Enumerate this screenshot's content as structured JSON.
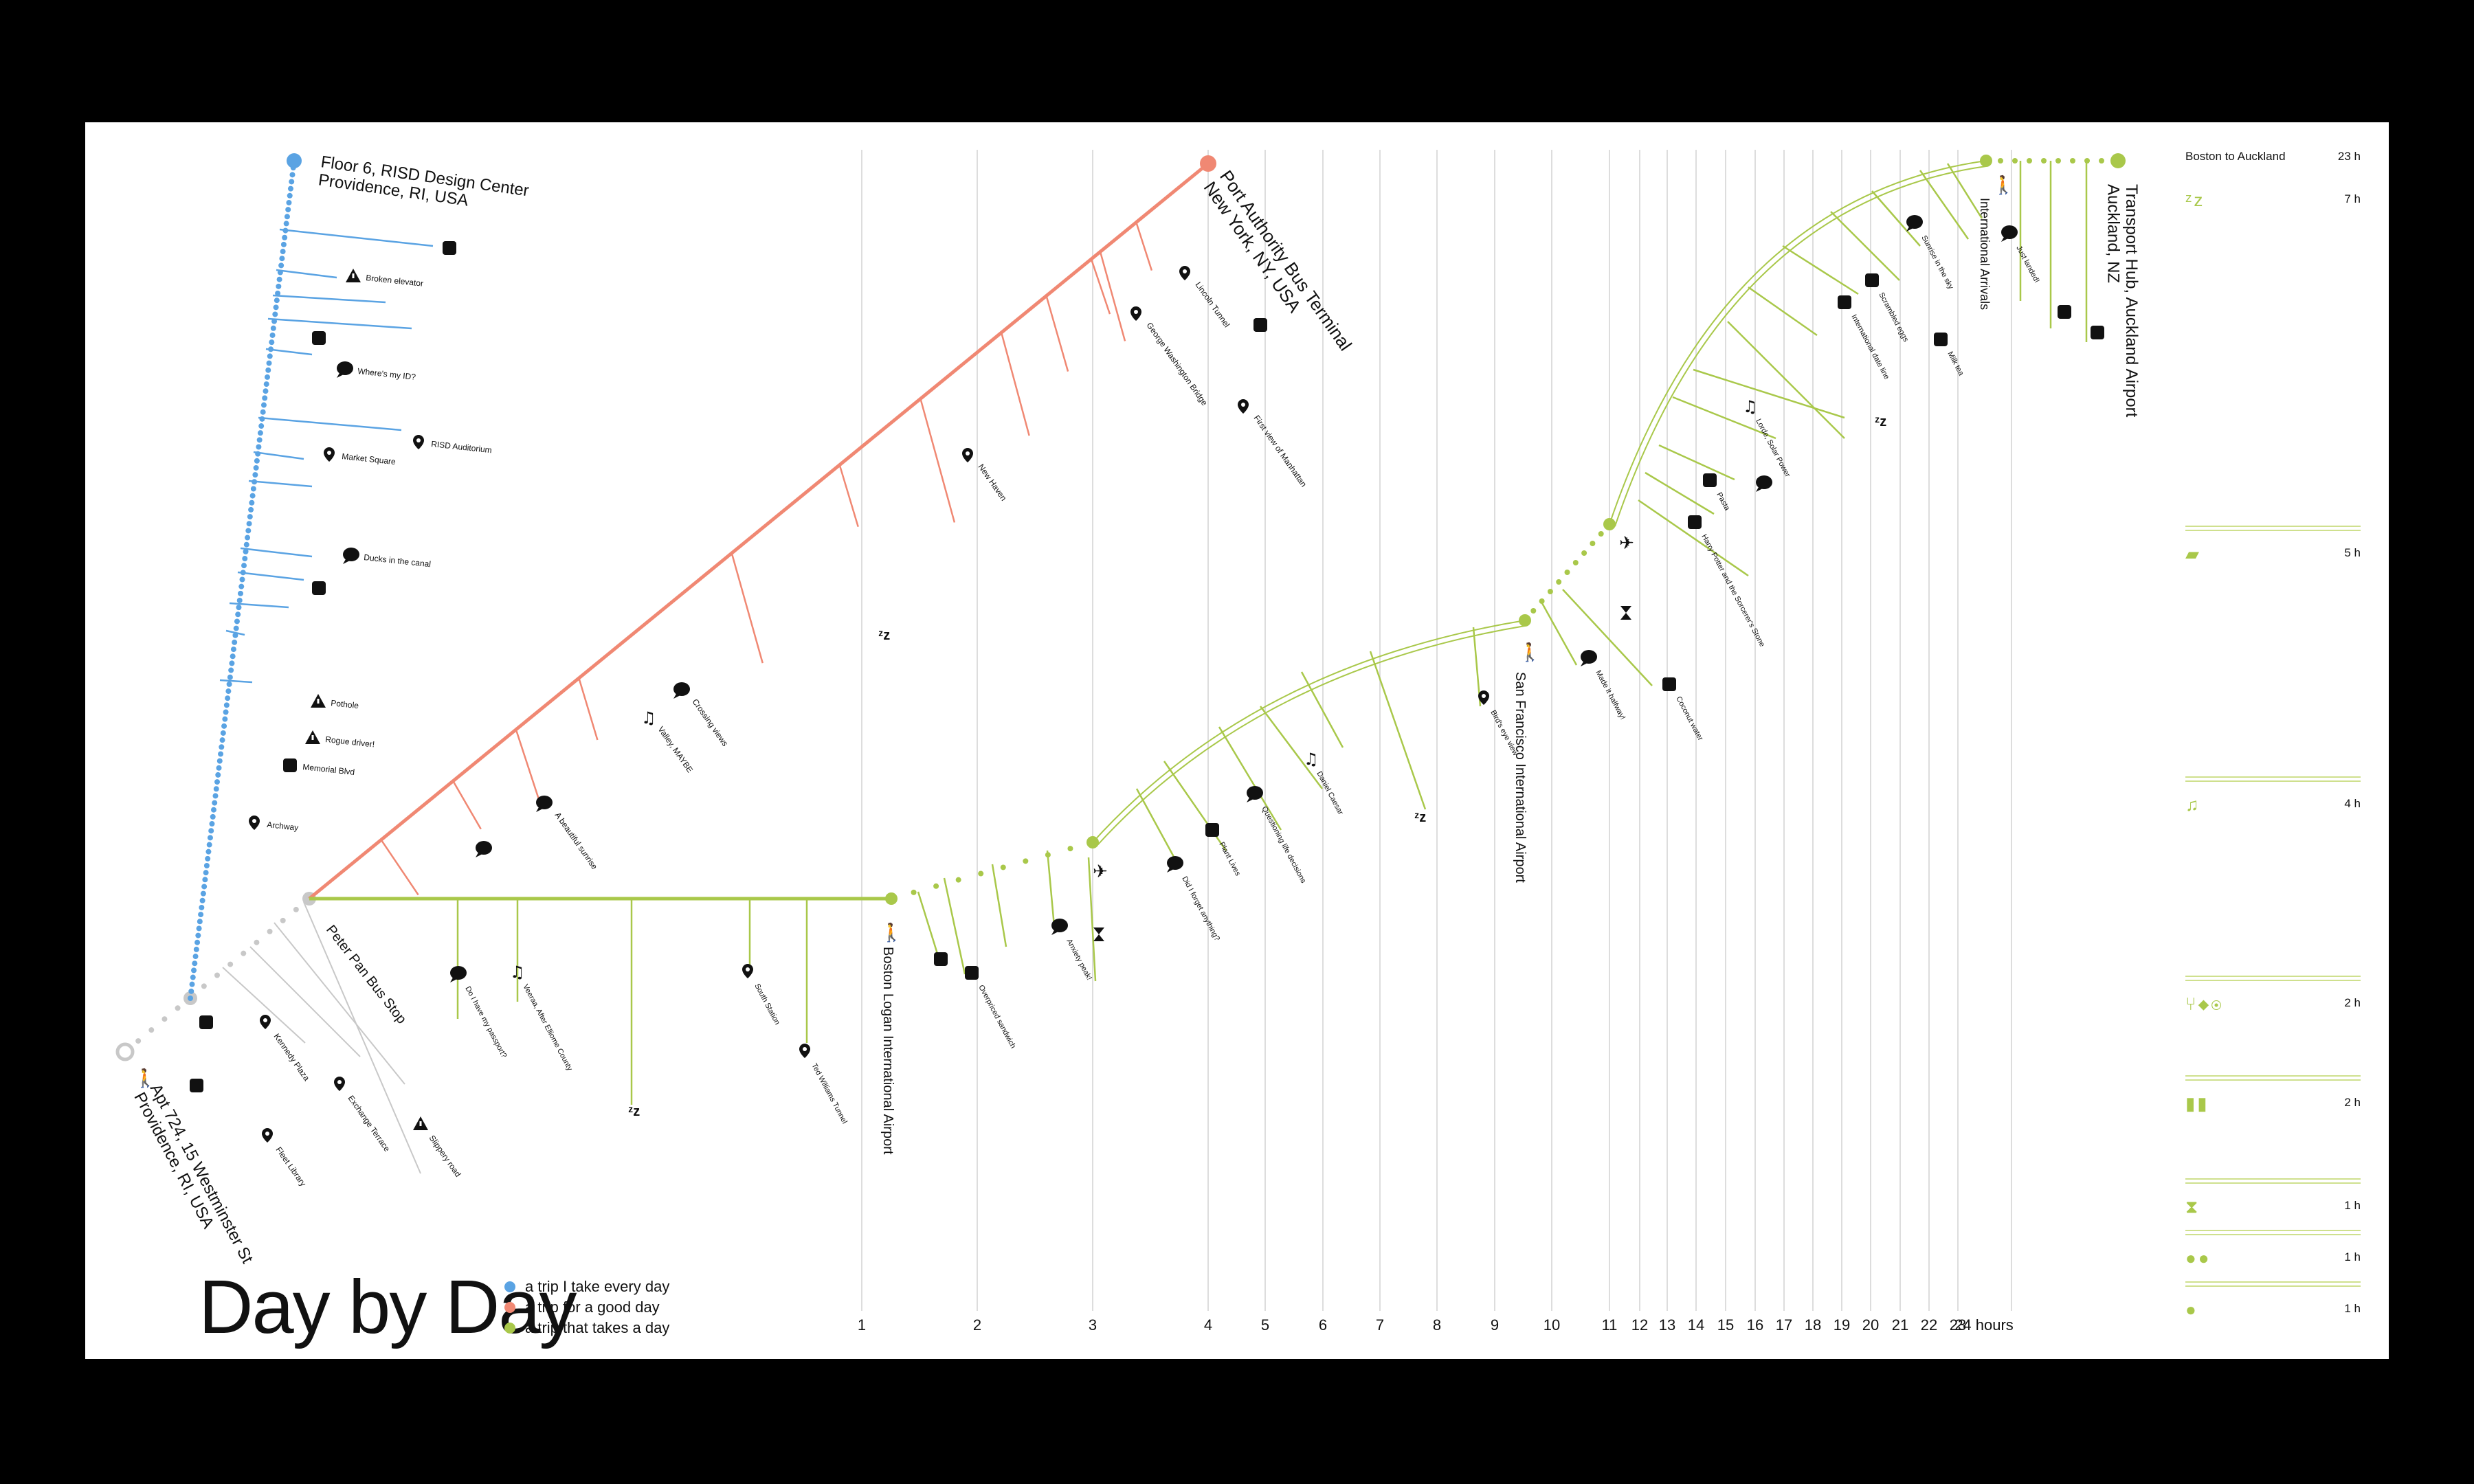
{
  "title": "Day by Day",
  "colors": {
    "daily": "#5aa3e3",
    "good": "#f08873",
    "long": "#a9c84a",
    "grid": "#dddddd",
    "gray": "#c8c8c8"
  },
  "legend": [
    {
      "label": "a trip I take every day",
      "color": "#5aa3e3"
    },
    {
      "label": "a trip for a good day",
      "color": "#f08873"
    },
    {
      "label": "a trip that takes a day",
      "color": "#a9c84a"
    }
  ],
  "axis": {
    "hours": [
      "1",
      "2",
      "3",
      "4",
      "5",
      "6",
      "7",
      "8",
      "9",
      "10",
      "11",
      "12",
      "13",
      "14",
      "15",
      "16",
      "17",
      "18",
      "19",
      "20",
      "21",
      "22",
      "23",
      "24 hours"
    ]
  },
  "places": {
    "home": "Apt 724, 15 Westminster St\nProvidence, RI, USA",
    "risd": "Floor 6, RISD Design Center\nProvidence, RI, USA",
    "nyc": "Port Authority Bus Terminal\nNew York, NY, USA",
    "akl": "Transport Hub, Auckland Airport\nAuckland, NZ",
    "peter_pan": "Peter Pan Bus Stop",
    "logan": "Boston Logan International Airport",
    "sfo": "San Francisco International Airport",
    "intl_arr": "International Arrivals"
  },
  "blue_events": [
    "Broken elevator",
    "Where's my ID?",
    "RISD Auditorium",
    "Market Square",
    "Ducks in the canal",
    "Pothole",
    "Rogue driver!",
    "Memorial Blvd",
    "Archway"
  ],
  "gray_events": [
    "Kennedy Plaza",
    "Exchange Terrace",
    "Slippery road",
    "Fleet Library"
  ],
  "red_events": [
    "A beautiful sunrise",
    "Valley, MAYBE",
    "Crossing views",
    "New Haven",
    "George Washington Bridge",
    "Lincoln Tunnel",
    "First view of Manhattan"
  ],
  "green_events": [
    "Do I have my passport?",
    "Veeraa, After Elliome County",
    "South Station",
    "Ted Williams Tunnel",
    "Overpriced sandwich",
    "Anxiety peak!",
    "Did I forget anything?",
    "Plant Lives",
    "Questioning life decisions",
    "Daniel Caesar",
    "Bird's eye view",
    "Made it halfway!",
    "Coconut water",
    "Harry Potter and the Sorcerer's Stone",
    "Pasta",
    "Lorde, Solar Power",
    "International date line",
    "Scrambled eggs",
    "Milk tea",
    "Sunrise in the sky",
    "Just landed!"
  ],
  "sidebar": {
    "header": {
      "label": "Boston to Auckland",
      "value": "23 h"
    },
    "rows": [
      {
        "icon": "sleep-icon",
        "glyph": "ᶻz",
        "value": "7 h"
      },
      {
        "icon": "movie-icon",
        "glyph": "▰",
        "value": "5 h"
      },
      {
        "icon": "music-icon",
        "glyph": "♫",
        "value": "4 h"
      },
      {
        "icon": "food-icon",
        "glyph": "⑂◆◉",
        "value": "2 h"
      },
      {
        "icon": "luggage-icon",
        "glyph": "▮▮",
        "value": "2 h"
      },
      {
        "icon": "hourglass-icon",
        "glyph": "⧗",
        "value": "1 h"
      },
      {
        "icon": "thought-icon",
        "glyph": "●●",
        "value": "1 h"
      },
      {
        "icon": "chat-icon",
        "glyph": "●",
        "value": "1 h"
      }
    ]
  }
}
